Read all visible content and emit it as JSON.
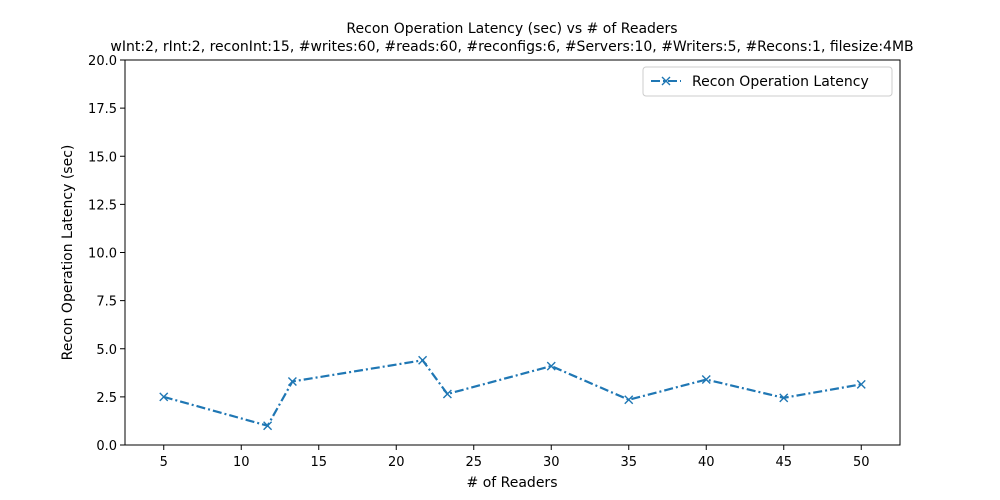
{
  "chart_data": {
    "type": "line",
    "title": "Recon Operation Latency (sec) vs # of Readers",
    "subtitle": "wInt:2, rInt:2, reconInt:15, #writes:60, #reads:60, #reconfigs:6, #Servers:10, #Writers:5, #Recons:1, filesize:4MB",
    "xlabel": "# of Readers",
    "ylabel": "Recon Operation Latency (sec)",
    "xlim": [
      2.5,
      52.5
    ],
    "ylim": [
      0,
      20
    ],
    "x_ticks": [
      5,
      10,
      15,
      20,
      25,
      30,
      35,
      40,
      45,
      50
    ],
    "y_ticks": [
      0.0,
      2.5,
      5.0,
      7.5,
      10.0,
      12.5,
      15.0,
      17.5,
      20.0
    ],
    "y_tick_labels": [
      "0.0",
      "2.5",
      "5.0",
      "7.5",
      "10.0",
      "12.5",
      "15.0",
      "17.5",
      "20.0"
    ],
    "grid": false,
    "legend_position": "top-right",
    "series": [
      {
        "name": "Recon Operation Latency",
        "color": "#1f77b4",
        "line_style": "dash-dot",
        "marker": "x",
        "x": [
          5,
          11.7,
          13.3,
          21.7,
          23.3,
          30,
          35,
          40,
          45,
          50
        ],
        "y": [
          2.5,
          1.0,
          3.3,
          4.4,
          2.65,
          4.1,
          2.35,
          3.4,
          2.45,
          3.15
        ]
      }
    ]
  }
}
